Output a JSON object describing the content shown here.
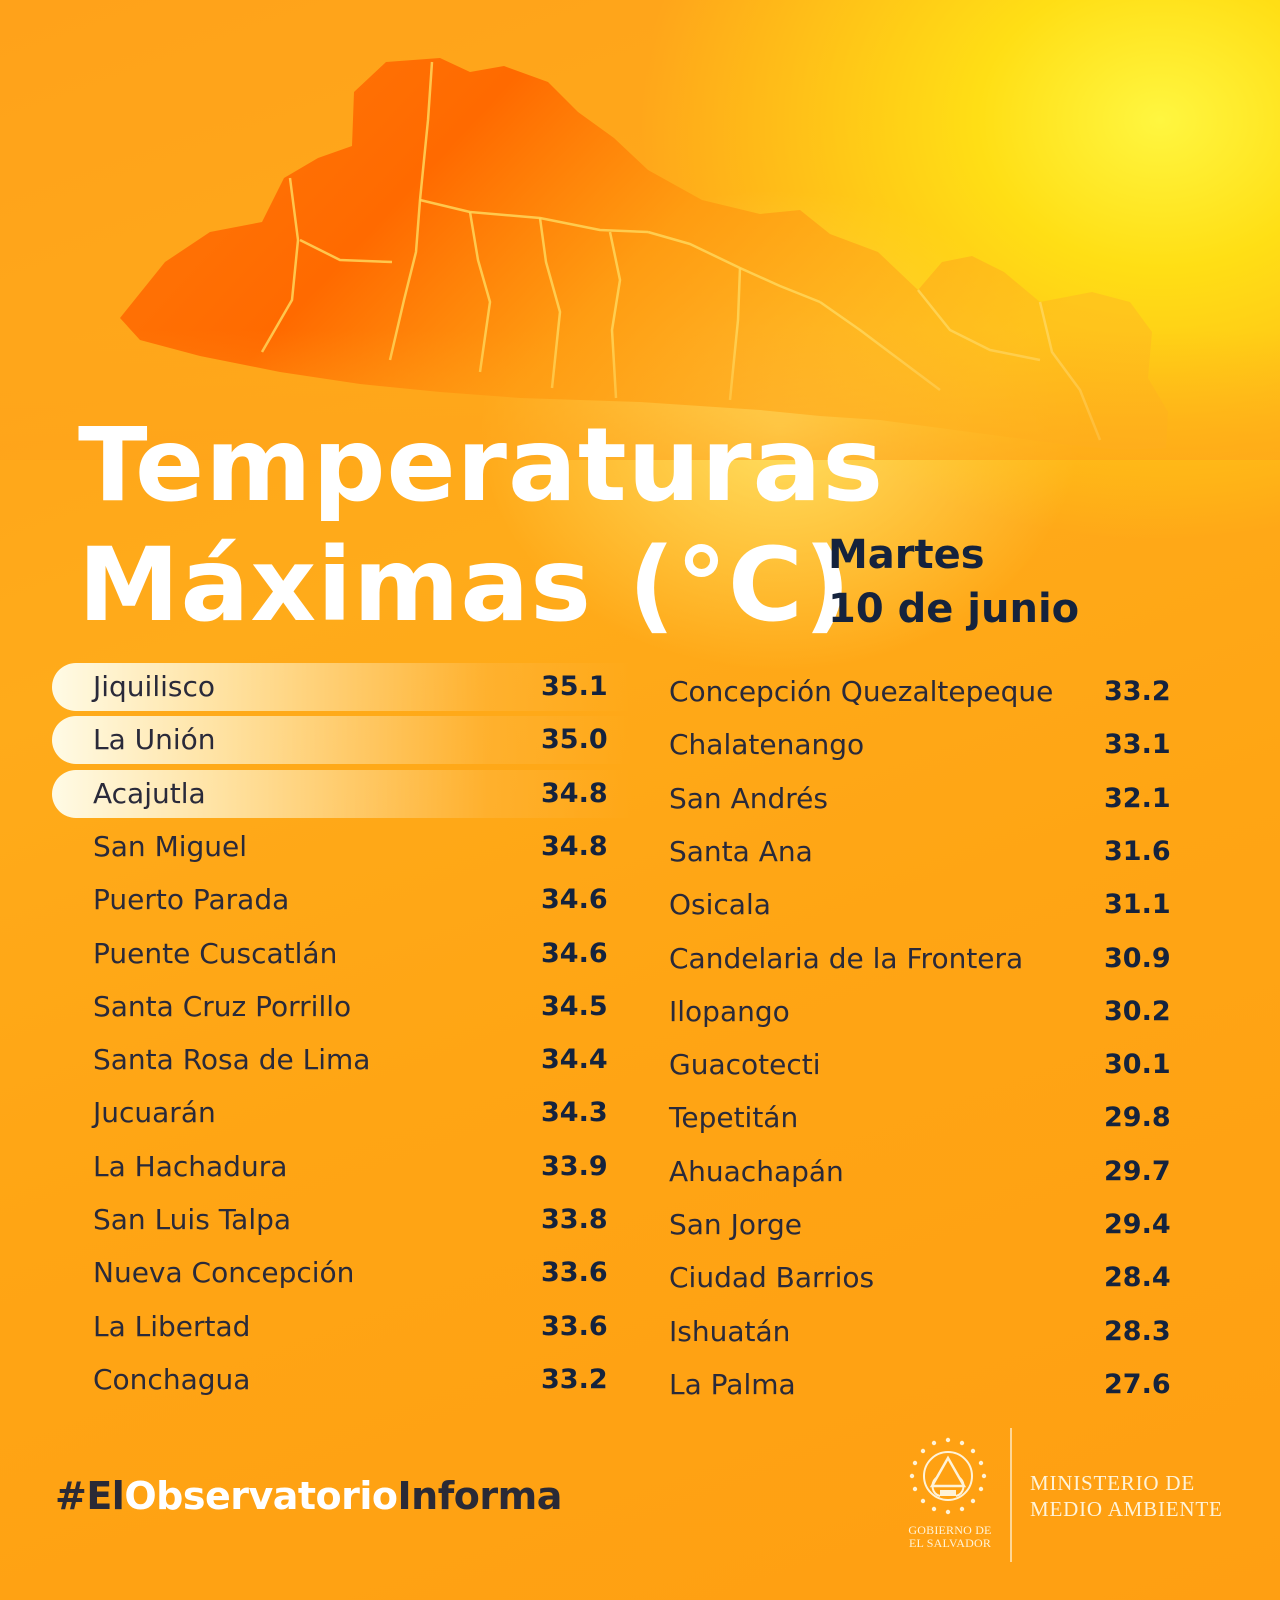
{
  "title": {
    "line1": "Temperaturas",
    "line2": "Máximas (°C)"
  },
  "date": {
    "weekday": "Martes",
    "day": "10 de junio"
  },
  "left_list": [
    {
      "place": "Jiquilisco",
      "value": "35.1",
      "highlighted": true
    },
    {
      "place": "La Unión",
      "value": "35.0",
      "highlighted": true
    },
    {
      "place": "Acajutla",
      "value": "34.8",
      "highlighted": true
    },
    {
      "place": "San Miguel",
      "value": "34.8"
    },
    {
      "place": "Puerto Parada",
      "value": "34.6"
    },
    {
      "place": "Puente Cuscatlán",
      "value": "34.6"
    },
    {
      "place": "Santa Cruz Porrillo",
      "value": "34.5"
    },
    {
      "place": "Santa Rosa de Lima",
      "value": "34.4"
    },
    {
      "place": "Jucuarán",
      "value": "34.3"
    },
    {
      "place": "La Hachadura",
      "value": "33.9"
    },
    {
      "place": "San Luis Talpa",
      "value": "33.8"
    },
    {
      "place": "Nueva Concepción",
      "value": "33.6"
    },
    {
      "place": "La Libertad",
      "value": "33.6"
    },
    {
      "place": "Conchagua",
      "value": "33.2"
    }
  ],
  "right_list": [
    {
      "place": "Concepción Quezaltepeque",
      "value": "33.2"
    },
    {
      "place": "Chalatenango",
      "value": "33.1"
    },
    {
      "place": "San Andrés",
      "value": "32.1"
    },
    {
      "place": "Santa Ana",
      "value": "31.6"
    },
    {
      "place": "Osicala",
      "value": "31.1"
    },
    {
      "place": "Candelaria de la Frontera",
      "value": "30.9"
    },
    {
      "place": "Ilopango",
      "value": "30.2"
    },
    {
      "place": "Guacotecti",
      "value": "30.1"
    },
    {
      "place": "Tepetitán",
      "value": "29.8"
    },
    {
      "place": "Ahuachapán",
      "value": "29.7"
    },
    {
      "place": "San Jorge",
      "value": "29.4"
    },
    {
      "place": "Ciudad Barrios",
      "value": "28.4"
    },
    {
      "place": "Ishuatán",
      "value": "28.3"
    },
    {
      "place": "La Palma",
      "value": "27.6"
    }
  ],
  "footer": {
    "hashtag_dark1": "#El",
    "hashtag_white1": "Observatorio",
    "hashtag_dark2": "Informa",
    "gov_line1": "GOBIERNO DE",
    "gov_line2": "EL SALVADOR",
    "ministry_line1": "MINISTERIO DE",
    "ministry_line2": "MEDIO AMBIENTE"
  },
  "icons": {
    "map": "el-salvador-map-icon",
    "seal": "el-salvador-coat-of-arms-icon"
  },
  "colors": {
    "background": "#ffa21a",
    "glow": "#fff640",
    "map_dark": "#ff6a00",
    "map_light": "#ffa81c",
    "title": "#ffffff",
    "date": "#15233d",
    "values": "#15233d",
    "place_text": "#2a2a3a"
  }
}
